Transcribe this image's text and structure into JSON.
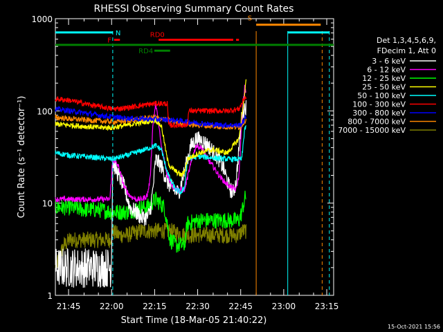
{
  "chart_data": {
    "type": "line",
    "title": "RHESSI Observing Summary Count Rates",
    "xlabel": "Start Time (18-Mar-05 21:40:22)",
    "ylabel": "Count Rate (s⁻¹ detector⁻¹)",
    "y_scale": "log",
    "ylim": [
      1,
      1000
    ],
    "x_range_minutes": [
      0,
      97
    ],
    "x_ticks": [
      {
        "label": "21:45",
        "min": 4.6
      },
      {
        "label": "22:00",
        "min": 19.6
      },
      {
        "label": "22:15",
        "min": 34.6
      },
      {
        "label": "22:30",
        "min": 49.6
      },
      {
        "label": "22:45",
        "min": 64.6
      },
      {
        "label": "23:00",
        "min": 79.6
      },
      {
        "label": "23:15",
        "min": 94.6
      }
    ],
    "y_ticks": [
      {
        "label": "1",
        "value": 1
      },
      {
        "label": "10",
        "value": 10
      },
      {
        "label": "100",
        "value": 100
      },
      {
        "label": "1000",
        "value": 1000
      }
    ],
    "legend": {
      "placement": "right",
      "header": [
        "Det 1,3,4,5,6,9,",
        "FDecim 1, Att 0"
      ]
    },
    "series": [
      {
        "name": "3 - 6 keV",
        "color": "#ffffff",
        "x": [
          0,
          19,
          19.5,
          20,
          22,
          24,
          26,
          28,
          30,
          32,
          33,
          34,
          35,
          37,
          39,
          41,
          43,
          45,
          47,
          49,
          51,
          53,
          55,
          57,
          59,
          60,
          61,
          62,
          63,
          64,
          65,
          66,
          66.5
        ],
        "y": [
          2,
          2,
          2,
          28,
          20,
          15,
          9,
          8,
          7,
          7,
          8,
          14,
          30,
          25,
          17,
          14,
          13,
          22,
          40,
          50,
          48,
          43,
          36,
          30,
          22,
          17,
          14,
          13,
          17,
          40,
          90,
          110,
          110
        ]
      },
      {
        "name": "6 - 12 keV",
        "color": "#ff00ff",
        "x": [
          0,
          19,
          20,
          22,
          24,
          26,
          28,
          30,
          32,
          33,
          34,
          35,
          37,
          39,
          41,
          43,
          45,
          47,
          49,
          51,
          53,
          55,
          57,
          59,
          61,
          63,
          64,
          65,
          66,
          66.5
        ],
        "y": [
          11,
          11,
          30,
          25,
          15,
          12,
          11,
          11,
          12,
          18,
          70,
          120,
          40,
          20,
          15,
          14,
          14,
          25,
          42,
          40,
          30,
          25,
          20,
          17,
          15,
          14,
          20,
          80,
          180,
          160
        ]
      },
      {
        "name": "12 - 25 keV",
        "color": "#00ff00",
        "x": [
          0,
          5,
          10,
          15,
          20,
          22,
          25,
          30,
          32,
          35,
          38,
          39,
          40,
          42,
          44,
          45,
          46,
          50,
          55,
          60,
          64,
          65,
          66,
          66.5
        ],
        "y": [
          9,
          9,
          8.5,
          8.5,
          8,
          8,
          8,
          9,
          9,
          11,
          9,
          6,
          4,
          3.5,
          3.5,
          3.5,
          6,
          6.5,
          6.5,
          6.5,
          6.5,
          8,
          11,
          12
        ]
      },
      {
        "name": "25 - 50 keV",
        "color": "#ffff00",
        "x": [
          0,
          5,
          10,
          15,
          20,
          25,
          30,
          35,
          37,
          39,
          40,
          42,
          44,
          45,
          46,
          50,
          55,
          60,
          64,
          65,
          66,
          66.5
        ],
        "y": [
          72,
          70,
          68,
          66,
          66,
          70,
          75,
          80,
          68,
          30,
          25,
          22,
          20,
          22,
          30,
          35,
          38,
          35,
          50,
          90,
          150,
          220
        ]
      },
      {
        "name": "50 - 100 keV",
        "color": "#00ffff",
        "x": [
          0,
          5,
          10,
          15,
          20,
          25,
          30,
          35,
          37,
          38,
          40,
          42,
          44,
          45,
          46,
          50,
          55,
          60,
          65,
          66,
          66.5
        ],
        "y": [
          35,
          33,
          32,
          31,
          30,
          33,
          37,
          42,
          38,
          28,
          18,
          14,
          13,
          15,
          30,
          32,
          31,
          30,
          30,
          65,
          65
        ]
      },
      {
        "name": "100 - 300 keV",
        "color": "#ff0000",
        "x": [
          0,
          5,
          10,
          15,
          20,
          25,
          30,
          35,
          39,
          39.5,
          46,
          46.5,
          55,
          60,
          64,
          65,
          66,
          66.5
        ],
        "y": [
          135,
          130,
          120,
          112,
          105,
          108,
          115,
          120,
          120,
          70,
          70,
          100,
          100,
          100,
          105,
          120,
          140,
          140
        ]
      },
      {
        "name": "300 - 800 keV",
        "color": "#0000ff",
        "x": [
          0,
          5,
          10,
          15,
          20,
          25,
          30,
          35,
          40,
          45,
          50,
          55,
          60,
          64,
          65,
          66,
          66.5
        ],
        "y": [
          105,
          100,
          95,
          90,
          86,
          83,
          82,
          81,
          80,
          77,
          74,
          71,
          70,
          70,
          72,
          82,
          85
        ]
      },
      {
        "name": "800 - 7000 keV",
        "color": "#ff8800",
        "x": [
          0,
          5,
          10,
          15,
          20,
          25,
          30,
          35,
          40,
          45,
          50,
          55,
          60,
          64,
          65,
          66,
          66.5
        ],
        "y": [
          85,
          82,
          80,
          78,
          76,
          78,
          82,
          85,
          78,
          72,
          70,
          68,
          67,
          67,
          70,
          78,
          80
        ]
      },
      {
        "name": "7000 - 15000 keV",
        "color": "#808000",
        "x": [
          0,
          3,
          5,
          10,
          15,
          19,
          20,
          22,
          25,
          30,
          35,
          40,
          45,
          50,
          55,
          60,
          64,
          65,
          66,
          66.5
        ],
        "y": [
          2,
          3.5,
          4,
          4,
          4,
          4,
          5,
          4.5,
          4.5,
          5,
          5,
          5,
          4.5,
          4.5,
          4.5,
          4.5,
          4.5,
          5,
          5,
          5
        ]
      }
    ],
    "annotations": [
      {
        "label": "N",
        "color": "#00ffff",
        "x_start": 0,
        "x_end": 20,
        "y": 710,
        "vline": 20
      },
      {
        "label": "F",
        "color": "#ff0000",
        "x_start": 20.5,
        "x_end": 22.5,
        "y": 590
      },
      {
        "label": "RD0",
        "color": "#ff0000",
        "x_start": 36,
        "x_end": 62,
        "y": 590
      },
      {
        "label": "",
        "color": "#ff0000",
        "x_start": 63,
        "x_end": 64,
        "y": 590
      },
      {
        "label": "RD4",
        "color": "#008000",
        "x_start": 34.5,
        "x_end": 40,
        "y": 450
      },
      {
        "label": "",
        "color": "#008000",
        "x_start": 0,
        "x_end": 97,
        "y": 520
      },
      {
        "label": "S",
        "color": "#ff8800",
        "x_start": 70,
        "x_end": 92.5,
        "y": 860,
        "vline": 70
      },
      {
        "label": "",
        "color": "#00ffff",
        "x_start": 81,
        "x_end": 95.5,
        "y": 710,
        "vline": 81
      }
    ],
    "vertical_markers": [
      {
        "min": 20,
        "color": "#00ffff",
        "dashed": true
      },
      {
        "min": 70,
        "color": "#ff8800",
        "dashed": false
      },
      {
        "min": 81,
        "color": "#00ffff",
        "dashed": false
      },
      {
        "min": 93,
        "color": "#ff8800",
        "dashed": true
      },
      {
        "min": 95.5,
        "color": "#00ffff",
        "dashed": true
      }
    ]
  },
  "footer": {
    "date": "15-Oct-2021 15:56"
  },
  "colors": {
    "background": "#000000",
    "axis": "#ffffff"
  }
}
